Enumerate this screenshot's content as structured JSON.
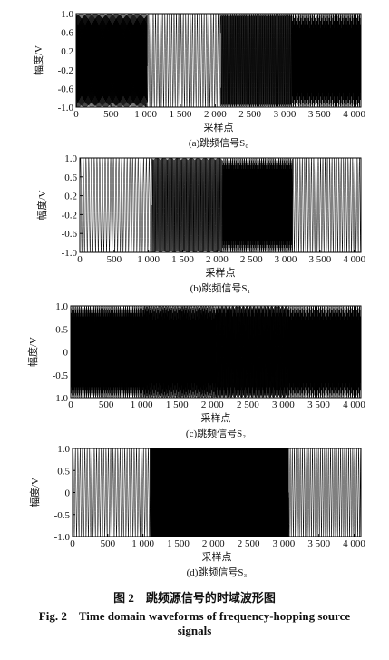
{
  "chart_data": [
    {
      "type": "frequency-hopping",
      "caption": "(a)跳频信号S₀",
      "xlabel": "采样点",
      "ylabel": "幅度/V",
      "amplitude": 1.0,
      "xlim": [
        0,
        4096
      ],
      "ylim": [
        -1.0,
        1.0
      ],
      "xticks": [
        0,
        500,
        {
          "value": 1000,
          "label": "1 000"
        },
        {
          "value": 1500,
          "label": "1 500"
        },
        {
          "value": 2000,
          "label": "2 000"
        },
        {
          "value": 2500,
          "label": "2 500"
        },
        {
          "value": 3000,
          "label": "3 000"
        },
        {
          "value": 3500,
          "label": "3 500"
        },
        {
          "value": 4000,
          "label": "4 000"
        }
      ],
      "yticks": [
        {
          "value": 1.0,
          "label": "1.0"
        },
        0.6,
        0.2,
        -0.2,
        -0.6,
        {
          "value": -1.0,
          "label": "-1.0"
        }
      ],
      "hops": [
        {
          "start": 0,
          "end": 1024,
          "frequency": 0.23
        },
        {
          "start": 1024,
          "end": 2080,
          "frequency": 0.03
        },
        {
          "start": 2080,
          "end": 3100,
          "frequency": 0.12
        },
        {
          "start": 3100,
          "end": 4096,
          "frequency": 0.26
        }
      ]
    },
    {
      "type": "frequency-hopping",
      "caption": "(b)跳频信号S₁",
      "xlabel": "采样点",
      "ylabel": "幅度/V",
      "amplitude": 1.0,
      "xlim": [
        0,
        4096
      ],
      "ylim": [
        -1.0,
        1.0
      ],
      "xticks": [
        0,
        500,
        {
          "value": 1000,
          "label": "1 000"
        },
        {
          "value": 1500,
          "label": "1 500"
        },
        {
          "value": 2000,
          "label": "2 000"
        },
        {
          "value": 2500,
          "label": "2 500"
        },
        {
          "value": 3000,
          "label": "3 000"
        },
        {
          "value": 3500,
          "label": "3 500"
        },
        {
          "value": 4000,
          "label": "4 000"
        }
      ],
      "yticks": [
        {
          "value": 1.0,
          "label": "1.0"
        },
        0.6,
        0.2,
        -0.2,
        -0.6,
        {
          "value": -1.0,
          "label": "-1.0"
        }
      ],
      "hops": [
        {
          "start": 0,
          "end": 1050,
          "frequency": 0.025
        },
        {
          "start": 1050,
          "end": 2080,
          "frequency": 0.09
        },
        {
          "start": 2080,
          "end": 3100,
          "frequency": 0.24
        },
        {
          "start": 3100,
          "end": 4096,
          "frequency": 0.03
        }
      ]
    },
    {
      "type": "frequency-hopping",
      "caption": "(c)跳频信号S₂",
      "xlabel": "采样点",
      "ylabel": "幅度/V",
      "amplitude": 1.0,
      "xlim": [
        0,
        4096
      ],
      "ylim": [
        -1.0,
        1.0
      ],
      "xticks": [
        0,
        500,
        {
          "value": 1000,
          "label": "1 000"
        },
        {
          "value": 1500,
          "label": "1 500"
        },
        {
          "value": 2000,
          "label": "2 000"
        },
        {
          "value": 2500,
          "label": "2 500"
        },
        {
          "value": 3000,
          "label": "3 000"
        },
        {
          "value": 3500,
          "label": "3 500"
        },
        {
          "value": 4000,
          "label": "4 000"
        }
      ],
      "yticks": [
        {
          "value": 1.0,
          "label": "1.0"
        },
        0.5,
        0,
        -0.5,
        {
          "value": -1.0,
          "label": "-1.0"
        }
      ],
      "hops": [
        {
          "start": 0,
          "end": 1024,
          "frequency": 0.24
        },
        {
          "start": 1024,
          "end": 2048,
          "frequency": 0.27
        },
        {
          "start": 2048,
          "end": 3072,
          "frequency": 0.22
        },
        {
          "start": 3072,
          "end": 4096,
          "frequency": 0.26
        }
      ]
    },
    {
      "type": "frequency-hopping",
      "caption": "(d)跳频信号S₃",
      "xlabel": "采样点",
      "ylabel": "幅度/V",
      "amplitude": 1.0,
      "xlim": [
        0,
        4096
      ],
      "ylim": [
        -1.0,
        1.0
      ],
      "xticks": [
        0,
        500,
        {
          "value": 1000,
          "label": "1 000"
        },
        {
          "value": 1500,
          "label": "1 500"
        },
        {
          "value": 2000,
          "label": "2 000"
        },
        {
          "value": 2500,
          "label": "2 500"
        },
        {
          "value": 3000,
          "label": "3 000"
        },
        {
          "value": 3500,
          "label": "3 500"
        },
        {
          "value": 4000,
          "label": "4 000"
        }
      ],
      "yticks": [
        {
          "value": 1.0,
          "label": "1.0"
        },
        0.5,
        0,
        -0.5,
        {
          "value": -1.0,
          "label": "-1.0"
        }
      ],
      "hops": [
        {
          "start": 0,
          "end": 1100,
          "frequency": 0.03
        },
        {
          "start": 1100,
          "end": 3072,
          "frequency": 0.25
        },
        {
          "start": 3072,
          "end": 4096,
          "frequency": 0.035
        }
      ]
    }
  ],
  "figure_caption": {
    "zh": "图 2　跳频源信号的时域波形图",
    "en": "Fig. 2　Time domain waveforms of frequency-hopping source signals"
  }
}
